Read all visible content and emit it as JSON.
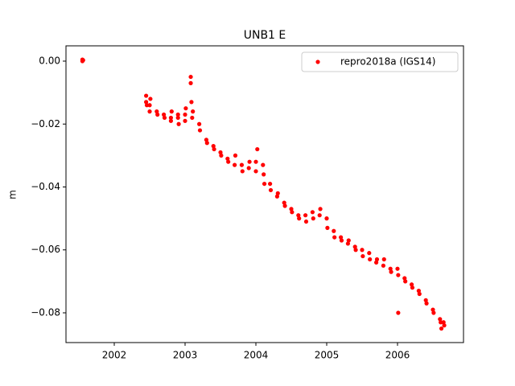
{
  "chart_data": {
    "type": "scatter",
    "title": "UNB1 E",
    "y_label": "m",
    "x": [
      2001.55,
      2001.55,
      2001.56,
      2002.45,
      2002.45,
      2002.46,
      2002.5,
      2002.5,
      2002.51,
      2002.6,
      2002.61,
      2002.7,
      2002.71,
      2002.8,
      2002.8,
      2002.81,
      2002.9,
      2002.9,
      2002.91,
      2003.0,
      2003.0,
      2003.01,
      2003.08,
      2003.08,
      2003.09,
      2003.1,
      2003.11,
      2003.2,
      2003.21,
      2003.3,
      2003.31,
      2003.4,
      2003.41,
      2003.5,
      2003.51,
      2003.6,
      2003.61,
      2003.7,
      2003.71,
      2003.8,
      2003.81,
      2003.9,
      2003.91,
      2004.0,
      2004.0,
      2004.02,
      2004.1,
      2004.11,
      2004.12,
      2004.2,
      2004.21,
      2004.3,
      2004.31,
      2004.4,
      2004.41,
      2004.5,
      2004.51,
      2004.6,
      2004.61,
      2004.7,
      2004.71,
      2004.8,
      2004.81,
      2004.9,
      2004.91,
      2005.0,
      2005.01,
      2005.1,
      2005.11,
      2005.2,
      2005.21,
      2005.3,
      2005.31,
      2005.4,
      2005.41,
      2005.5,
      2005.51,
      2005.6,
      2005.61,
      2005.7,
      2005.71,
      2005.8,
      2005.81,
      2005.9,
      2005.91,
      2006.0,
      2006.01,
      2006.01,
      2006.1,
      2006.11,
      2006.2,
      2006.21,
      2006.3,
      2006.31,
      2006.4,
      2006.41,
      2006.5,
      2006.51,
      2006.6,
      2006.61,
      2006.62,
      2006.65,
      2006.66
    ],
    "series": [
      {
        "name": "repro2018a (IGS14)",
        "color": "#ff0000",
        "values": [
          0.0005,
          0.0,
          0.0003,
          -0.011,
          -0.013,
          -0.014,
          -0.014,
          -0.016,
          -0.012,
          -0.016,
          -0.017,
          -0.017,
          -0.018,
          -0.018,
          -0.019,
          -0.016,
          -0.018,
          -0.017,
          -0.02,
          -0.017,
          -0.019,
          -0.015,
          -0.005,
          -0.007,
          -0.013,
          -0.018,
          -0.016,
          -0.02,
          -0.022,
          -0.025,
          -0.026,
          -0.027,
          -0.028,
          -0.029,
          -0.03,
          -0.031,
          -0.032,
          -0.033,
          -0.03,
          -0.033,
          -0.035,
          -0.034,
          -0.032,
          -0.032,
          -0.035,
          -0.028,
          -0.033,
          -0.036,
          -0.039,
          -0.039,
          -0.041,
          -0.043,
          -0.042,
          -0.045,
          -0.046,
          -0.047,
          -0.048,
          -0.049,
          -0.05,
          -0.049,
          -0.051,
          -0.048,
          -0.05,
          -0.049,
          -0.047,
          -0.05,
          -0.053,
          -0.054,
          -0.056,
          -0.056,
          -0.057,
          -0.058,
          -0.057,
          -0.059,
          -0.06,
          -0.06,
          -0.062,
          -0.061,
          -0.063,
          -0.064,
          -0.063,
          -0.065,
          -0.063,
          -0.066,
          -0.067,
          -0.066,
          -0.068,
          -0.08,
          -0.069,
          -0.07,
          -0.071,
          -0.072,
          -0.073,
          -0.074,
          -0.076,
          -0.077,
          -0.079,
          -0.08,
          -0.082,
          -0.083,
          -0.085,
          -0.083,
          -0.084
        ]
      }
    ],
    "xlim": [
      2001.318,
      2006.932
    ],
    "xticks": [
      2002,
      2003,
      2004,
      2005,
      2006
    ],
    "ylim": [
      -0.08946,
      0.00486
    ],
    "yticks": [
      {
        "value": 0,
        "label": "0.00"
      },
      {
        "value": -0.02,
        "label": "−0.02"
      },
      {
        "value": -0.04,
        "label": "−0.04"
      },
      {
        "value": -0.06,
        "label": "−0.06"
      },
      {
        "value": -0.08,
        "label": "−0.08"
      }
    ],
    "legend": "upper right",
    "grid": false
  }
}
